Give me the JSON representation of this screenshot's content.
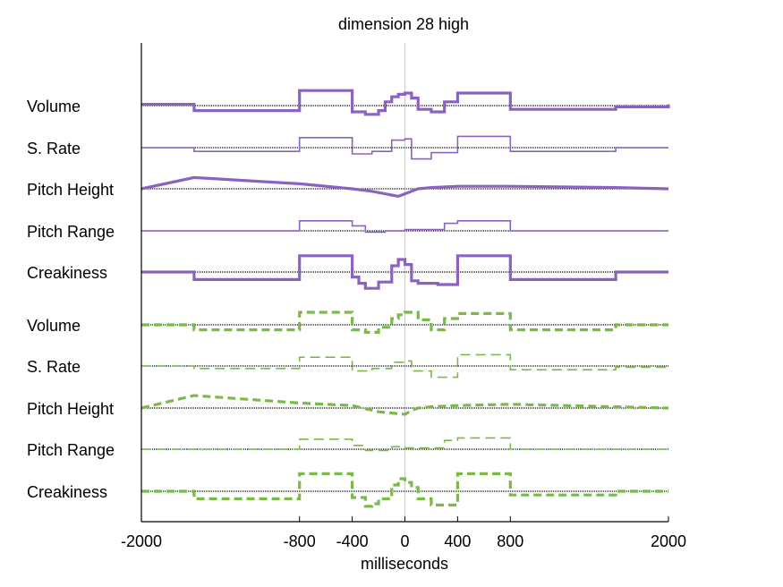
{
  "chart_data": {
    "type": "line",
    "title": "dimension 28 high",
    "xlabel": "milliseconds",
    "xlim": [
      -2000,
      2000
    ],
    "xticks": [
      -2000,
      -800,
      -400,
      0,
      400,
      800,
      2000
    ],
    "xtick_labels": [
      "-2000",
      "-800",
      "-400",
      "0",
      "400",
      "800",
      "2000"
    ],
    "vertical_reference_line_x": 0,
    "colors": {
      "group1": "#8a63c0",
      "group2": "#7ab94a",
      "zero_line": "#000000"
    },
    "groups": [
      {
        "style": "solid",
        "color_key": "group1",
        "rows": [
          {
            "label": "Volume",
            "weight": "thick",
            "x": [
              -2000,
              -1600,
              -800,
              -400,
              -300,
              -200,
              -150,
              -100,
              -50,
              0,
              50,
              100,
              200,
              300,
              400,
              800,
              1600,
              2000
            ],
            "y": [
              0.1,
              -0.4,
              1.2,
              -0.5,
              -0.7,
              -0.4,
              0.3,
              0.7,
              0.9,
              1.0,
              0.6,
              -0.3,
              -0.5,
              0.3,
              1.0,
              -0.3,
              -0.1,
              0.1
            ]
          },
          {
            "label": "S. Rate",
            "weight": "thin",
            "x": [
              -2000,
              -1600,
              -800,
              -400,
              -250,
              -100,
              0,
              50,
              200,
              400,
              800,
              1600,
              2000
            ],
            "y": [
              0,
              -0.3,
              0.8,
              -0.5,
              -0.3,
              0.6,
              0.7,
              -0.9,
              -0.4,
              0.9,
              -0.3,
              0,
              0
            ]
          },
          {
            "label": "Pitch Height",
            "weight": "thick",
            "x": [
              -2000,
              -1600,
              -800,
              -400,
              -250,
              -150,
              -100,
              -50,
              0,
              50,
              100,
              200,
              400,
              800,
              1600,
              2000
            ],
            "y": [
              0,
              0.9,
              0.4,
              0,
              -0.2,
              -0.4,
              -0.5,
              -0.6,
              -0.4,
              -0.2,
              0,
              0.1,
              0.2,
              0.2,
              0.1,
              0
            ],
            "step": false
          },
          {
            "label": "Pitch Range",
            "weight": "thin",
            "x": [
              -2000,
              -800,
              -400,
              -300,
              -150,
              0,
              300,
              400,
              800,
              2000
            ],
            "y": [
              0,
              0.8,
              0.4,
              -0.1,
              0,
              0.1,
              0.6,
              0.8,
              0,
              0
            ]
          },
          {
            "label": "Creakiness",
            "weight": "thick",
            "x": [
              -2000,
              -1600,
              -800,
              -400,
              -350,
              -300,
              -200,
              -100,
              -50,
              0,
              50,
              100,
              250,
              400,
              800,
              1600,
              2000
            ],
            "y": [
              0,
              -0.6,
              1.3,
              -0.4,
              -0.9,
              -1.3,
              -0.8,
              0.5,
              1.0,
              0.6,
              -0.7,
              -0.9,
              -1.0,
              1.3,
              -0.6,
              0,
              0
            ]
          }
        ]
      },
      {
        "style": "dashed",
        "color_key": "group2",
        "rows": [
          {
            "label": "Volume",
            "weight": "thick",
            "x": [
              -2000,
              -1600,
              -800,
              -400,
              -300,
              -200,
              -100,
              -50,
              0,
              100,
              200,
              300,
              400,
              800,
              1600,
              2000
            ],
            "y": [
              0,
              -0.4,
              1.0,
              -0.4,
              -0.6,
              -0.2,
              0.5,
              0.8,
              1.0,
              0.4,
              -0.4,
              0.5,
              0.9,
              -0.4,
              0,
              0
            ]
          },
          {
            "label": "S. Rate",
            "weight": "thin",
            "x": [
              -2000,
              -1600,
              -800,
              -400,
              -250,
              -100,
              0,
              50,
              200,
              400,
              800,
              1600,
              2000
            ],
            "y": [
              0,
              -0.2,
              0.7,
              -0.4,
              -0.2,
              0.3,
              0.4,
              -0.4,
              -0.9,
              0.9,
              -0.3,
              -0.1,
              0
            ],
            "pattern": "sparse"
          },
          {
            "label": "Pitch Height",
            "weight": "thick",
            "x": [
              -2000,
              -1600,
              -800,
              -400,
              -200,
              -100,
              0,
              50,
              100,
              200,
              400,
              800,
              1600,
              2000
            ],
            "y": [
              0,
              1.0,
              0.4,
              0.2,
              -0.3,
              -0.4,
              -0.5,
              -0.2,
              0,
              0.1,
              0.2,
              0.3,
              0.1,
              0
            ],
            "step": false
          },
          {
            "label": "Pitch Range",
            "weight": "thin",
            "x": [
              -2000,
              -800,
              -400,
              -300,
              -100,
              0,
              300,
              400,
              800,
              2000
            ],
            "y": [
              0,
              0.8,
              0.3,
              -0.1,
              0.2,
              0.1,
              0.7,
              0.9,
              0,
              0
            ]
          },
          {
            "label": "Creakiness",
            "weight": "thick",
            "x": [
              -2000,
              -1600,
              -800,
              -400,
              -300,
              -250,
              -200,
              -100,
              -50,
              0,
              50,
              100,
              200,
              400,
              800,
              1600,
              2000
            ],
            "y": [
              0,
              -0.6,
              1.4,
              -0.5,
              -1.2,
              -1.0,
              -0.6,
              0.5,
              1.0,
              0.7,
              0.3,
              -0.6,
              -1.1,
              1.4,
              -0.3,
              0,
              0
            ]
          }
        ]
      }
    ]
  }
}
